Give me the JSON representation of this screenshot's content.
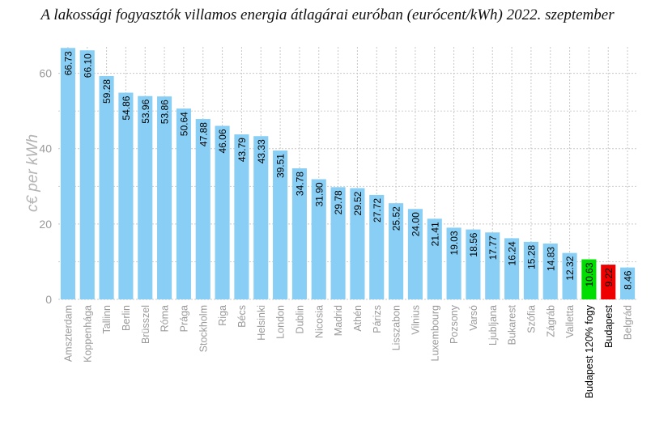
{
  "chart_data": {
    "type": "bar",
    "title": "A lakossági fogyasztók villamos energia átlagárai euróban (eurócent/kWh) 2022. szeptember",
    "xlabel": "",
    "ylabel": "c€ per kWh",
    "ylim": [
      0,
      67
    ],
    "yticks": [
      0,
      20,
      40,
      60
    ],
    "grid": true,
    "categories": [
      "Amszterdam",
      "Koppenhága",
      "Tallinn",
      "Berlin",
      "Brüsszel",
      "Róma",
      "Prága",
      "Stockholm",
      "Riga",
      "Bécs",
      "Helsinki",
      "London",
      "Dublin",
      "Nicosia",
      "Madrid",
      "Athén",
      "Párizs",
      "Lisszabon",
      "Vilnius",
      "Luxembourg",
      "Pozsony",
      "Varsó",
      "Ljubljana",
      "Bukarest",
      "Szófia",
      "Zágráb",
      "Valletta",
      "Budapest 120% fogy",
      "Budapest",
      "Belgrád"
    ],
    "values": [
      66.73,
      66.1,
      59.28,
      54.86,
      53.96,
      53.86,
      50.64,
      47.88,
      46.06,
      43.79,
      43.33,
      39.51,
      34.78,
      31.9,
      29.78,
      29.52,
      27.72,
      25.52,
      24.0,
      21.41,
      19.03,
      18.56,
      17.77,
      16.24,
      15.28,
      14.83,
      12.32,
      10.63,
      9.22,
      8.46
    ],
    "value_labels": [
      "66.73",
      "66.10",
      "59.28",
      "54.86",
      "53.96",
      "53.86",
      "50.64",
      "47.88",
      "46.06",
      "43.79",
      "43.33",
      "39.51",
      "34.78",
      "31.90",
      "29.78",
      "29.52",
      "27.72",
      "25.52",
      "24.00",
      "21.41",
      "19.03",
      "18.56",
      "17.77",
      "16.24",
      "15.28",
      "14.83",
      "12.32",
      "10.63",
      "9.22",
      "8.46"
    ],
    "colors": {
      "default": "#89CFF5",
      "highlight_green": "#00DD00",
      "highlight_red": "#EE0000",
      "grid": "#c8c8c8",
      "axis_text": "#9a9a9a",
      "highlight_text": "#000000"
    },
    "highlights": {
      "Budapest 120% fogy": "highlight_green",
      "Budapest": "highlight_red"
    }
  }
}
